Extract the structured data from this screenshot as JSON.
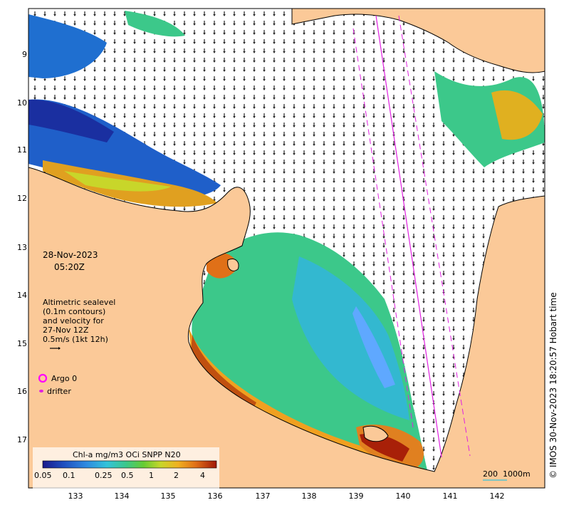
{
  "map": {
    "datetime": {
      "date": "28-Nov-2023",
      "time": "05:20Z"
    },
    "description": [
      "Altimetric sealevel",
      "(0.1m contours)",
      "and velocity for",
      "27-Nov 12Z",
      "0.5m/s (1kt 12h)"
    ],
    "legend": {
      "argo": "Argo 0",
      "drifter": "drifter"
    },
    "colorbar": {
      "title": "Chl-a mg/m3 OCi SNPP N20",
      "ticks": [
        "0.05",
        "0.1",
        "0.25",
        "0.5",
        "1",
        "2",
        "4"
      ]
    },
    "depth_scale": {
      "a": "200",
      "b": "1000m"
    },
    "credit": "© IMOS 30-Nov-2023 18:20:57 Hobart time",
    "lat_ticks": [
      "9",
      "10",
      "11",
      "12",
      "13",
      "14",
      "15",
      "16",
      "17"
    ],
    "lon_ticks": [
      "133",
      "134",
      "135",
      "136",
      "137",
      "138",
      "139",
      "140",
      "141",
      "142"
    ],
    "colors": {
      "land": "#fbc998",
      "water": "#ffffff",
      "track": "#e020e0",
      "argo": "#ff00ff"
    }
  }
}
